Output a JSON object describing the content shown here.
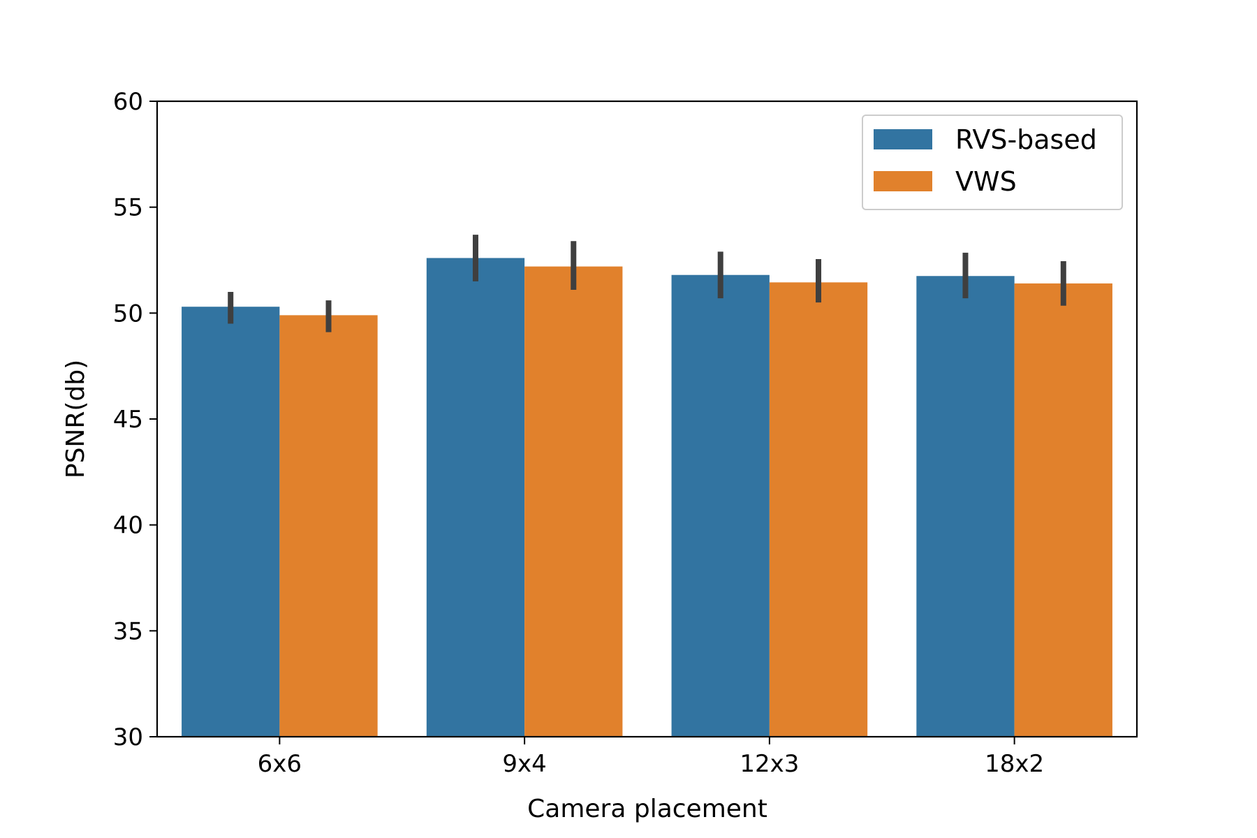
{
  "chart_data": {
    "type": "bar",
    "categories": [
      "6x6",
      "9x4",
      "12x3",
      "18x2"
    ],
    "series": [
      {
        "name": "RVS-based",
        "color": "#3274a1",
        "values": [
          50.3,
          52.6,
          51.8,
          51.75
        ],
        "err_low": [
          49.5,
          51.5,
          50.7,
          50.7
        ],
        "err_high": [
          51.0,
          53.7,
          52.9,
          52.85
        ]
      },
      {
        "name": "VWS",
        "color": "#e1812c",
        "values": [
          49.9,
          52.2,
          51.45,
          51.4
        ],
        "err_low": [
          49.1,
          51.1,
          50.5,
          50.35
        ],
        "err_high": [
          50.6,
          53.4,
          52.55,
          52.45
        ]
      }
    ],
    "xlabel": "Camera placement",
    "ylabel": "PSNR(db)",
    "ylim": [
      30,
      60
    ],
    "yticks": [
      "30",
      "35",
      "40",
      "45",
      "50",
      "55",
      "60"
    ],
    "grid": false,
    "legend_position": "top-right",
    "errorbar_color": "#3f3f3f"
  }
}
